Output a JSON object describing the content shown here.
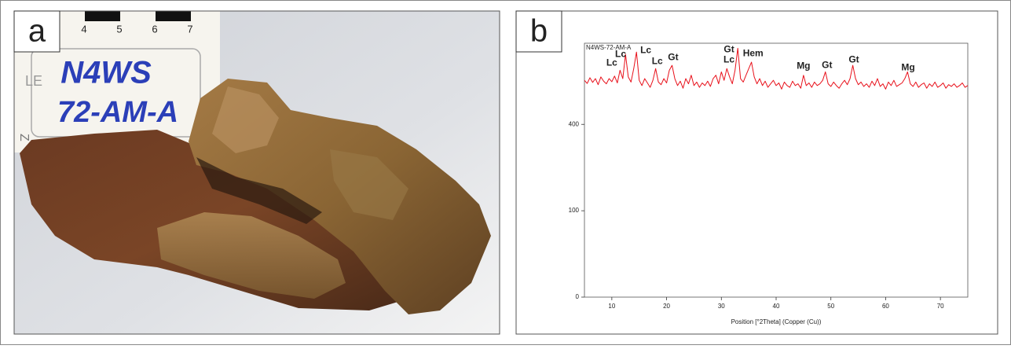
{
  "figure": {
    "panel_a": {
      "label": "a",
      "scale_numbers": [
        "4",
        "5",
        "6",
        "7"
      ],
      "sample_label": [
        "N4WS",
        "72-AM-A"
      ],
      "side_marks": [
        "LE",
        "Z"
      ]
    },
    "panel_b": {
      "label": "b"
    }
  },
  "chart_data": {
    "type": "line",
    "y_scale": "sqrt",
    "x_label": "Position [°2Theta] (Copper (Cu))",
    "xlim": [
      5,
      75
    ],
    "xticks": [
      10,
      20,
      30,
      40,
      50,
      60,
      70
    ],
    "ylim": [
      0,
      864
    ],
    "yticks": [
      0,
      100,
      400
    ],
    "x": [
      5,
      5.5,
      6,
      6.5,
      7,
      7.5,
      8,
      8.5,
      9,
      9.5,
      10,
      10.5,
      11,
      11.5,
      12,
      12.5,
      13,
      13.5,
      14,
      14.5,
      15,
      15.5,
      16,
      16.5,
      17,
      17.5,
      18,
      18.5,
      19,
      19.5,
      20,
      20.5,
      21,
      21.5,
      22,
      22.5,
      23,
      23.5,
      24,
      24.5,
      25,
      25.5,
      26,
      26.5,
      27,
      27.5,
      28,
      28.5,
      29,
      29.5,
      30,
      30.5,
      31,
      31.5,
      32,
      32.5,
      33,
      33.5,
      34,
      34.5,
      35,
      35.5,
      36,
      36.5,
      37,
      37.5,
      38,
      38.5,
      39,
      39.5,
      40,
      40.5,
      41,
      41.5,
      42,
      42.5,
      43,
      43.5,
      44,
      44.5,
      45,
      45.5,
      46,
      46.5,
      47,
      47.5,
      48,
      48.5,
      49,
      49.5,
      50,
      50.5,
      51,
      51.5,
      52,
      52.5,
      53,
      53.5,
      54,
      54.5,
      55,
      55.5,
      56,
      56.5,
      57,
      57.5,
      58,
      58.5,
      59,
      59.5,
      60,
      60.5,
      61,
      61.5,
      62,
      62.5,
      63,
      63.5,
      64,
      64.5,
      65,
      65.5,
      66,
      66.5,
      67,
      67.5,
      68,
      68.5,
      69,
      69.5,
      70,
      70.5,
      71,
      71.5,
      72,
      72.5,
      73,
      73.5,
      74,
      74.5,
      75
    ],
    "series": [
      {
        "name": "N4WS-72-AM-A",
        "color": "#e8101a",
        "values": [
          630,
          612,
          645,
          618,
          640,
          605,
          650,
          625,
          610,
          640,
          622,
          655,
          615,
          690,
          640,
          790,
          650,
          620,
          700,
          805,
          630,
          600,
          640,
          615,
          590,
          630,
          700,
          620,
          605,
          640,
          615,
          690,
          720,
          640,
          600,
          625,
          585,
          640,
          610,
          660,
          600,
          620,
          590,
          615,
          600,
          625,
          595,
          640,
          660,
          610,
          680,
          630,
          700,
          650,
          610,
          690,
          830,
          640,
          620,
          660,
          700,
          740,
          650,
          610,
          640,
          600,
          625,
          590,
          610,
          630,
          600,
          615,
          580,
          620,
          600,
          590,
          625,
          600,
          610,
          585,
          660,
          600,
          615,
          590,
          620,
          600,
          610,
          630,
          680,
          610,
          595,
          620,
          600,
          585,
          610,
          630,
          605,
          640,
          720,
          640,
          605,
          620,
          595,
          610,
          590,
          625,
          600,
          640,
          595,
          610,
          580,
          620,
          600,
          630,
          595,
          605,
          615,
          640,
          680,
          610,
          595,
          620,
          590,
          605,
          615,
          585,
          610,
          595,
          620,
          590,
          600,
          615,
          585,
          605,
          595,
          610,
          590,
          600,
          615,
          590,
          600
        ]
      }
    ],
    "annotations": [
      {
        "text": "Lc",
        "x": 10.0,
        "y": 734
      },
      {
        "text": "Lc",
        "x": 11.6,
        "y": 789
      },
      {
        "text": "Lc",
        "x": 16.2,
        "y": 815
      },
      {
        "text": "Lc",
        "x": 18.3,
        "y": 744
      },
      {
        "text": "Gt",
        "x": 21.2,
        "y": 769
      },
      {
        "text": "Gt",
        "x": 31.4,
        "y": 820
      },
      {
        "text": "Lc",
        "x": 31.4,
        "y": 754
      },
      {
        "text": "Hem",
        "x": 35.8,
        "y": 794
      },
      {
        "text": "Mg",
        "x": 45.0,
        "y": 714
      },
      {
        "text": "Gt",
        "x": 49.3,
        "y": 719
      },
      {
        "text": "Gt",
        "x": 54.2,
        "y": 754
      },
      {
        "text": "Mg",
        "x": 64.1,
        "y": 705
      }
    ]
  }
}
